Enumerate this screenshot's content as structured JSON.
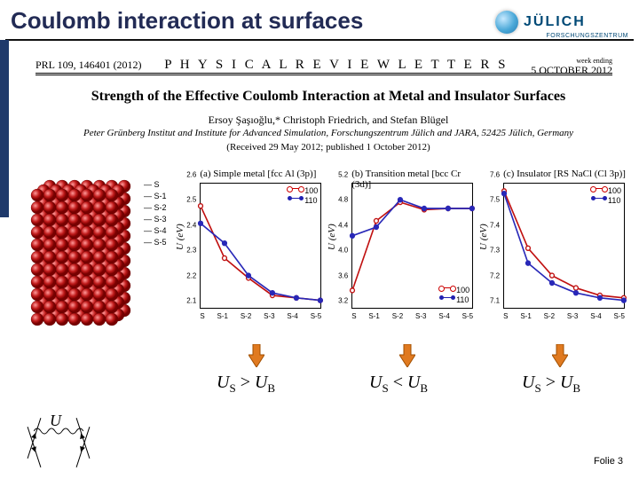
{
  "slide_title": "Coulomb interaction at surfaces",
  "logo": {
    "name": "JÜLICH",
    "subtitle": "FORSCHUNGSZENTRUM"
  },
  "prl": {
    "left": "PRL 109, 146401 (2012)",
    "center": "P H Y S I C A L   R E V I E W   L E T T E R S",
    "right_top": "week ending",
    "right_bottom": "5 OCTOBER 2012"
  },
  "paper": {
    "title": "Strength of the Effective Coulomb Interaction at Metal and Insulator Surfaces",
    "authors": "Ersoy Şaşıoğlu,* Christoph Friedrich, and Stefan Blügel",
    "affiliation": "Peter Grünberg Institut and Institute for Advanced Simulation, Forschungszentrum Jülich and JARA, 52425 Jülich, Germany",
    "received": "(Received 29 May 2012; published 1 October 2012)"
  },
  "colors": {
    "red_series": "#c01010",
    "blue_series": "#2828b8",
    "arrow_fill": "#e07a20",
    "atoms": "#c01a1a",
    "background": "#ffffff"
  },
  "layer_labels": [
    "S",
    "S-1",
    "S-2",
    "S-3",
    "S-4",
    "S-5"
  ],
  "x_categories": [
    "S",
    "S-1",
    "S-2",
    "S-3",
    "S-4",
    "S-5"
  ],
  "plots": [
    {
      "title": "(a) Simple metal [fcc Al (3p)]",
      "ylabel": "U (eV)",
      "ylim": [
        2.1,
        2.6
      ],
      "ytick_step": 0.1,
      "legend_pos": "top-right",
      "series": {
        "100": [
          2.51,
          2.3,
          2.22,
          2.15,
          2.14,
          2.13
        ],
        "110": [
          2.44,
          2.36,
          2.23,
          2.16,
          2.14,
          2.13
        ]
      },
      "inequality": "Uₛ > U_B"
    },
    {
      "title": "(b) Transition metal [bcc Cr (3d)]",
      "ylabel": "U (eV)",
      "ylim": [
        3.2,
        5.2
      ],
      "ytick_step": 0.4,
      "legend_pos": "bottom-right",
      "series": {
        "100": [
          3.48,
          4.6,
          4.9,
          4.78,
          4.8,
          4.8
        ],
        "110": [
          4.36,
          4.5,
          4.94,
          4.8,
          4.8,
          4.8
        ]
      },
      "inequality": "Uₛ < U_B"
    },
    {
      "title": "(c) Insulator [RS NaCl (Cl 3p)]",
      "ylabel": "U (eV)",
      "ylim": [
        7.1,
        7.6
      ],
      "ytick_step": 0.1,
      "legend_pos": "top-right",
      "series": {
        "100": [
          7.57,
          7.34,
          7.23,
          7.18,
          7.15,
          7.14
        ],
        "110": [
          7.56,
          7.28,
          7.2,
          7.16,
          7.14,
          7.13
        ]
      },
      "inequality": "Uₛ > U_B"
    }
  ],
  "legend_labels": {
    "open": "100",
    "filled": "110"
  },
  "feynman_U": "U",
  "footer": "Folie 3"
}
